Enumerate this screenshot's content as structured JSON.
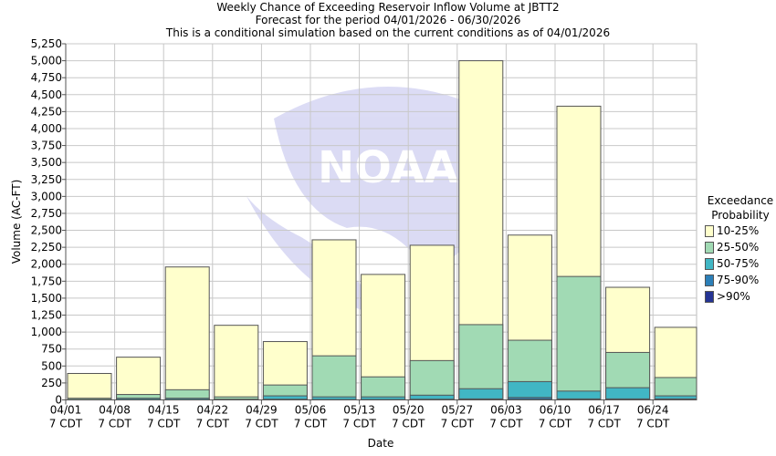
{
  "chart_data": {
    "type": "bar",
    "title": [
      "Weekly Chance of Exceeding Reservoir Inflow Volume at JBTT2",
      "Forecast for the period 04/01/2026 - 06/30/2026",
      "This is a conditional simulation based on the current conditions as of 04/01/2026"
    ],
    "xlabel": "Date",
    "ylabel": "Volume (AC-FT)",
    "ylim": [
      0,
      5250
    ],
    "yticks": [
      0,
      250,
      500,
      750,
      1000,
      1250,
      1500,
      1750,
      2000,
      2250,
      2500,
      2750,
      3000,
      3250,
      3500,
      3750,
      4000,
      4250,
      4500,
      4750,
      5000,
      5250
    ],
    "categories": [
      "04/01\n7 CDT",
      "04/08\n7 CDT",
      "04/15\n7 CDT",
      "04/22\n7 CDT",
      "04/29\n7 CDT",
      "05/06\n7 CDT",
      "05/13\n7 CDT",
      "05/20\n7 CDT",
      "05/27\n7 CDT",
      "06/03\n7 CDT",
      "06/10\n7 CDT",
      "06/17\n7 CDT",
      "06/24\n7 CDT"
    ],
    "grid": true,
    "legend": {
      "title": [
        "Exceedance",
        "Probability"
      ],
      "placement": "right"
    },
    "series": [
      {
        "name": "10-25%",
        "color": "#ffffcc",
        "values": [
          390,
          630,
          1960,
          1100,
          860,
          2360,
          1850,
          2280,
          5000,
          2430,
          4330,
          1660,
          1070
        ]
      },
      {
        "name": "25-50%",
        "color": "#a1dab4",
        "values": [
          25,
          80,
          150,
          45,
          220,
          650,
          340,
          580,
          1110,
          880,
          1820,
          700,
          330
        ]
      },
      {
        "name": "50-75%",
        "color": "#41b6c4",
        "values": [
          5,
          25,
          25,
          10,
          60,
          45,
          45,
          70,
          165,
          270,
          130,
          180,
          60
        ]
      },
      {
        "name": "75-90%",
        "color": "#2c7fb8",
        "values": [
          2,
          5,
          5,
          3,
          10,
          5,
          5,
          10,
          15,
          35,
          15,
          15,
          15
        ]
      },
      {
        "name": ">90%",
        "color": "#253494",
        "values": [
          1,
          2,
          2,
          1,
          3,
          2,
          2,
          3,
          5,
          8,
          5,
          5,
          5
        ]
      }
    ]
  },
  "watermark": "NATIONAL OCEANIC AND ATMOSPHERIC ADMINISTRATION NOAA"
}
